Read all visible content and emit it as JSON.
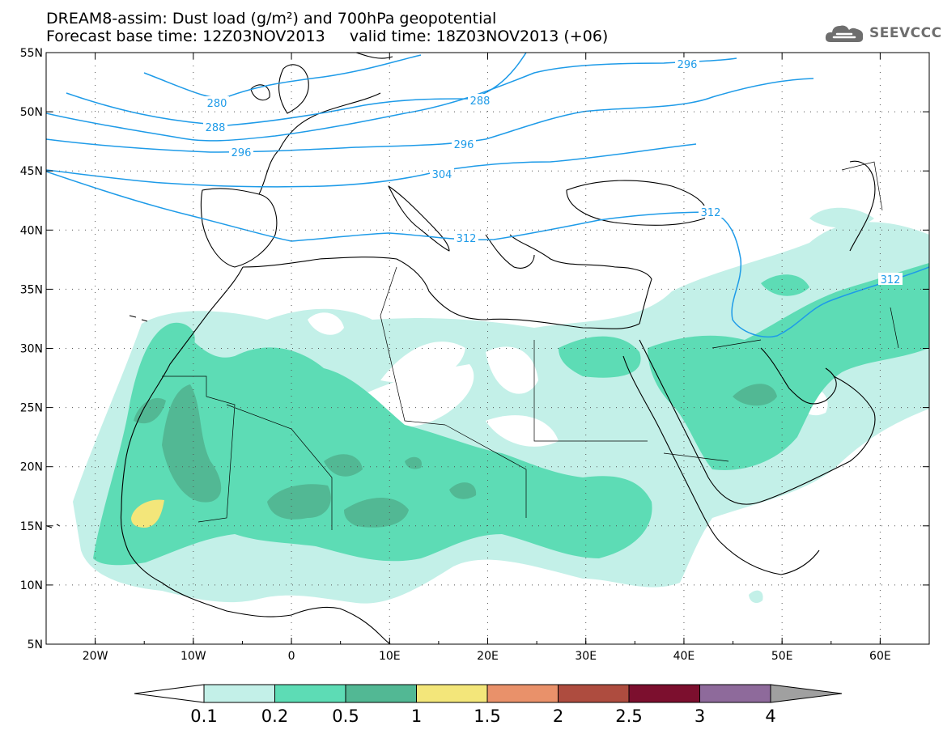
{
  "header": {
    "title_line1": "DREAM8-assim: Dust load (g/m²) and 700hPa geopotential",
    "title_line2": "Forecast base time: 12Z03NOV2013     valid time: 18Z03NOV2013 (+06)"
  },
  "logo": {
    "text": "SEEVCCC",
    "icon": "cloud-logo-icon"
  },
  "map": {
    "lon_range": [
      -25,
      65
    ],
    "lat_range": [
      5,
      55
    ],
    "lat_ticks": [
      "55N",
      "50N",
      "45N",
      "40N",
      "35N",
      "30N",
      "25N",
      "20N",
      "15N",
      "10N",
      "5N"
    ],
    "lon_ticks": [
      "20W",
      "10W",
      "0",
      "10E",
      "20E",
      "30E",
      "40E",
      "50E",
      "60E"
    ],
    "contour_labels": [
      "280",
      "288",
      "288",
      "296",
      "296",
      "296",
      "304",
      "312",
      "312",
      "312"
    ]
  },
  "colorbar": {
    "labels": [
      "0.1",
      "0.2",
      "0.5",
      "1",
      "1.5",
      "2",
      "2.5",
      "3",
      "4"
    ],
    "colors": [
      "#c3f0e8",
      "#5ddcb5",
      "#52b894",
      "#f3e67a",
      "#e9916a",
      "#ae4c3f",
      "#7c0f2e",
      "#8e6a9b"
    ],
    "under_color": "#ffffff",
    "over_color": "#a0a0a0"
  },
  "colors": {
    "contour": "#1e9be8",
    "coast": "#000000"
  }
}
